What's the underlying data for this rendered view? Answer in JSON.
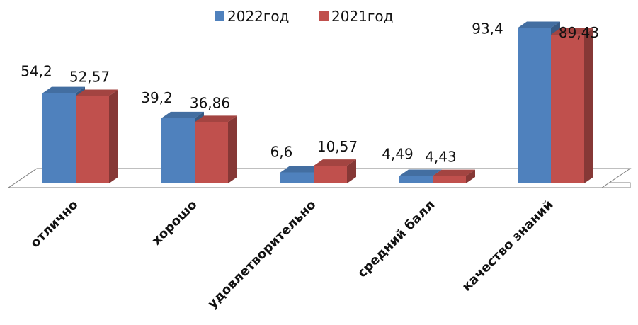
{
  "chart_data": {
    "type": "bar",
    "categories": [
      "отлично",
      "хорошо",
      "удовлетворительно",
      "средний балл",
      "качество знаний"
    ],
    "series": [
      {
        "name": "2022год",
        "values": [
          54.2,
          39.2,
          6.6,
          4.49,
          93.4
        ],
        "labels": [
          "54,2",
          "39,2",
          "6,6",
          "4,49",
          "93,4"
        ],
        "color": "#4F81BD"
      },
      {
        "name": "2021год",
        "values": [
          52.57,
          36.86,
          10.57,
          4.43,
          89.43
        ],
        "labels": [
          "52,57",
          "36,86",
          "10,57",
          "4,43",
          "89,43"
        ],
        "color": "#C0504D"
      }
    ],
    "ylim": [
      0,
      100
    ],
    "grid": false,
    "legend": "top-center",
    "style": "3d-clustered-column"
  }
}
